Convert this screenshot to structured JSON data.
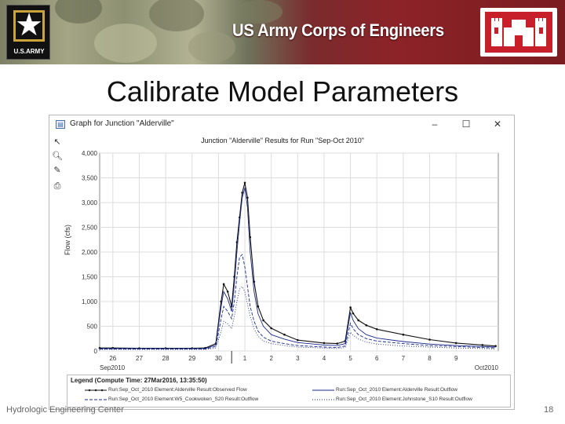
{
  "banner": {
    "army_logo_text": "U.S.ARMY",
    "org_name": "US Army Corps of Engineers"
  },
  "slide": {
    "title": "Calibrate Model Parameters",
    "footer_left": "Hydrologic Engineering Center",
    "page_number": "18"
  },
  "window": {
    "title": "Graph for Junction \"Alderville\"",
    "minimize": "–",
    "maximize": "☐",
    "close": "✕",
    "tools": [
      "pointer-tool",
      "zoom-tool",
      "properties-tool",
      "print-tool"
    ]
  },
  "chart_data": {
    "type": "line",
    "title": "Junction \"Alderville\" Results for Run \"Sep-Oct 2010\"",
    "ylabel": "Flow (cfs)",
    "xlabel": "",
    "ylim": [
      0,
      4000
    ],
    "yticks": [
      0,
      500,
      1000,
      1500,
      2000,
      2500,
      3000,
      3500,
      4000
    ],
    "ytick_labels": [
      "0",
      "500",
      "1,000",
      "1,500",
      "2,000",
      "2,500",
      "3,000",
      "3,500",
      "4,000"
    ],
    "x_domain": [
      25.5,
      10.6
    ],
    "xtick_labels": [
      "26",
      "27",
      "28",
      "29",
      "30",
      "1",
      "2",
      "3",
      "4",
      "5",
      "6",
      "7",
      "8",
      "9"
    ],
    "x_period_labels": [
      "Sep2010",
      "Oct2010"
    ],
    "x": [
      25.5,
      26,
      27,
      28,
      29,
      29.5,
      29.9,
      30.1,
      30.2,
      30.35,
      30.5,
      30.6,
      30.7,
      30.8,
      30.9,
      31,
      31.1,
      31.2,
      31.35,
      31.5,
      31.7,
      32,
      32.5,
      33,
      34,
      34.5,
      34.8,
      35,
      35.1,
      35.3,
      35.6,
      36,
      37,
      38,
      39,
      40,
      40.5
    ],
    "series": [
      {
        "name": "Run:Sep_Oct_2010 Element:Alderville Result:Observed Flow",
        "style": "solid-marker",
        "color": "#111111",
        "values": [
          60,
          60,
          55,
          55,
          55,
          60,
          150,
          1000,
          1350,
          1200,
          900,
          1500,
          2200,
          2700,
          3200,
          3400,
          3100,
          2300,
          1400,
          900,
          620,
          460,
          330,
          220,
          160,
          150,
          200,
          880,
          760,
          620,
          520,
          440,
          330,
          230,
          160,
          120,
          100
        ]
      },
      {
        "name": "Run:Sep_Oct_2010 Element:Alderville Result:Outflow",
        "style": "solid",
        "color": "#1a2a8c",
        "values": [
          50,
          50,
          50,
          50,
          50,
          50,
          120,
          900,
          1200,
          1050,
          800,
          1350,
          2000,
          2600,
          3100,
          3300,
          2900,
          2000,
          1200,
          750,
          500,
          330,
          240,
          170,
          120,
          110,
          150,
          780,
          620,
          450,
          330,
          260,
          190,
          140,
          110,
          90,
          80
        ]
      },
      {
        "name": "Run:Sep_Oct_2010 Element:W5_Cookwoken_S20 Result:Outflow",
        "style": "dash",
        "color": "#1a2a8c",
        "values": [
          40,
          40,
          40,
          40,
          40,
          40,
          90,
          650,
          900,
          800,
          650,
          1000,
          1500,
          1900,
          1950,
          1700,
          1300,
          900,
          600,
          400,
          280,
          200,
          150,
          110,
          80,
          70,
          100,
          560,
          450,
          330,
          250,
          200,
          150,
          110,
          90,
          70,
          60
        ]
      },
      {
        "name": "Run:Sep_Oct_2010 Element:Johnstone_S10 Result:Outflow",
        "style": "dot",
        "color": "#1a2a8c",
        "values": [
          30,
          30,
          30,
          30,
          30,
          30,
          60,
          400,
          600,
          550,
          450,
          700,
          1000,
          1250,
          1300,
          1200,
          950,
          700,
          450,
          300,
          200,
          150,
          110,
          80,
          60,
          50,
          70,
          380,
          320,
          240,
          180,
          140,
          100,
          80,
          60,
          50,
          40
        ]
      }
    ]
  },
  "legend": {
    "title": "Legend (Compute Time: 27Mar2016, 13:35:50)",
    "entries": [
      "Run:Sep_Oct_2010 Element:Alderville Result:Observed Flow",
      "Run:Sep_Oct_2010 Element:Alderville Result:Outflow",
      "Run:Sep_Oct_2010 Element:W5_Cookwoken_S20 Result:Outflow",
      "Run:Sep_Oct_2010 Element:Johnstone_S10 Result:Outflow"
    ]
  }
}
